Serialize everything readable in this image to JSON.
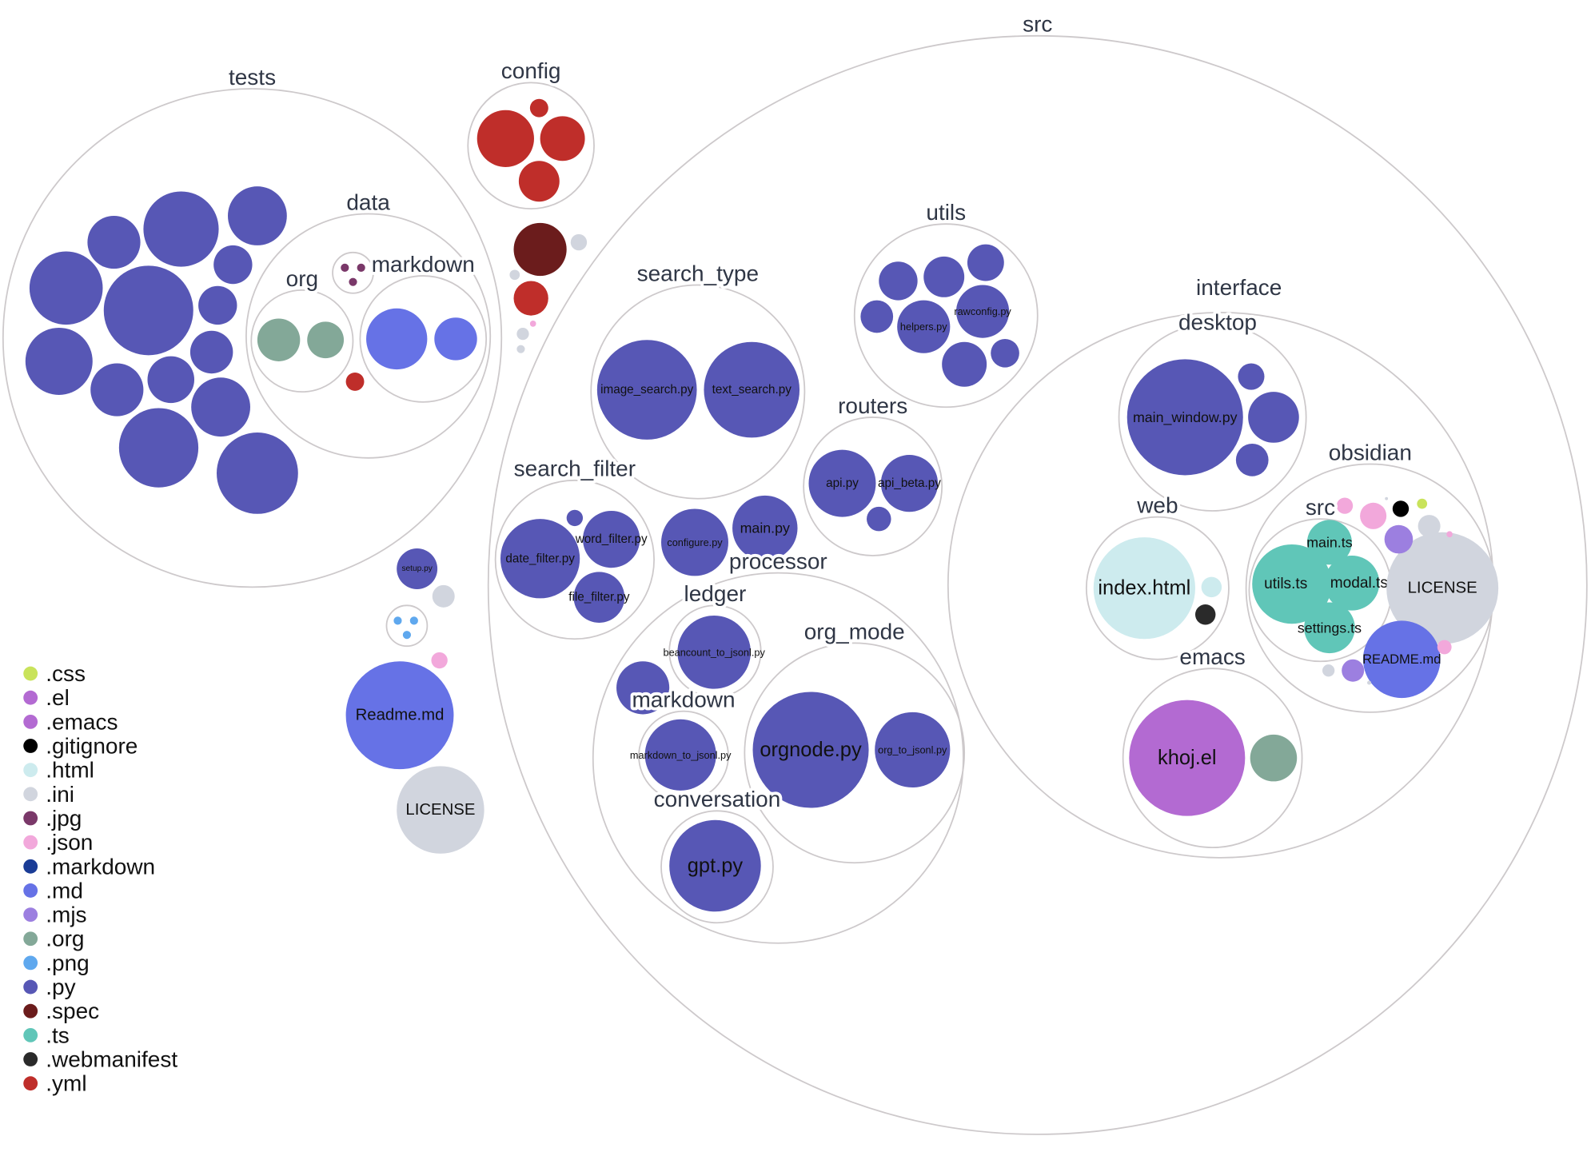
{
  "folders": {
    "tests": "tests",
    "data": "data",
    "org": "org",
    "tests_markdown": "markdown",
    "config": "config",
    "src": "src",
    "search_type": "search_type",
    "utils": "utils",
    "routers": "routers",
    "interface": "interface",
    "desktop": "desktop",
    "web": "web",
    "obsidian": "obsidian",
    "obsidian_src": "src",
    "emacs": "emacs",
    "search_filter": "search_filter",
    "processor": "processor",
    "ledger": "ledger",
    "processor_markdown": "markdown",
    "org_mode": "org_mode",
    "conversation": "conversation"
  },
  "files": {
    "setup": "setup.py",
    "readme_root": "Readme.md",
    "license_root": "LICENSE",
    "image_search": "image_search.py",
    "text_search": "text_search.py",
    "helpers": "helpers.py",
    "rawconfig": "rawconfig.py",
    "api": "api.py",
    "api_beta": "api_beta.py",
    "date_filter": "date_filter.py",
    "word_filter": "word_filter.py",
    "file_filter": "file_filter.py",
    "configure": "configure.py",
    "main": "main.py",
    "beancount": "beancount_to_jsonl.py",
    "markdown_to_jsonl": "markdown_to_jsonl.py",
    "orgnode": "orgnode.py",
    "org_to_jsonl": "org_to_jsonl.py",
    "gpt": "gpt.py",
    "main_window": "main_window.py",
    "index_html": "index.html",
    "main_ts": "main.ts",
    "utils_ts": "utils.ts",
    "modal_ts": "modal.ts",
    "settings_ts": "settings.ts",
    "license_obs": "LICENSE",
    "readme_obs": "README.md",
    "khoj_el": "khoj.el"
  },
  "legend": [
    {
      "ext": ".css",
      "color": "#c9e35b"
    },
    {
      "ext": ".el",
      "color": "#b36ad2"
    },
    {
      "ext": ".emacs",
      "color": "#b36ad2"
    },
    {
      "ext": ".gitignore",
      "color": "#000000"
    },
    {
      "ext": ".html",
      "color": "#cdebee"
    },
    {
      "ext": ".ini",
      "color": "#d1d5de"
    },
    {
      "ext": ".jpg",
      "color": "#7a3869"
    },
    {
      "ext": ".json",
      "color": "#f2a8db"
    },
    {
      "ext": ".markdown",
      "color": "#1a3c96"
    },
    {
      "ext": ".md",
      "color": "#6672e6"
    },
    {
      "ext": ".mjs",
      "color": "#9c7fe0"
    },
    {
      "ext": ".org",
      "color": "#83a898"
    },
    {
      "ext": ".png",
      "color": "#5fa8ee"
    },
    {
      "ext": ".py",
      "color": "#5757b5"
    },
    {
      "ext": ".spec",
      "color": "#6b1c1c"
    },
    {
      "ext": ".ts",
      "color": "#60c6b8"
    },
    {
      "ext": ".webmanifest",
      "color": "#2a2a2a"
    },
    {
      "ext": ".yml",
      "color": "#bf2e2a"
    }
  ]
}
